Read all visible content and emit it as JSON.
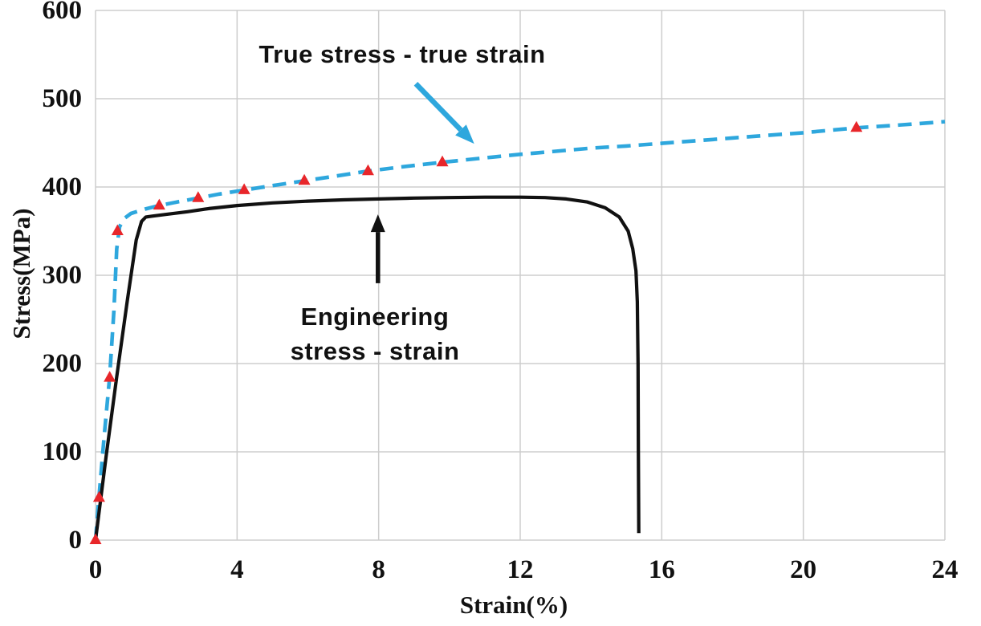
{
  "chart_data": {
    "type": "line",
    "title": "",
    "xlabel": "Strain(%)",
    "ylabel": "Stress(MPa)",
    "xlim": [
      0,
      24
    ],
    "ylim": [
      0,
      600
    ],
    "x_ticks": [
      0,
      4,
      8,
      12,
      16,
      20,
      24
    ],
    "y_ticks": [
      0,
      100,
      200,
      300,
      400,
      500,
      600
    ],
    "grid": true,
    "legend_position": "none",
    "series": [
      {
        "name": "True stress - true strain",
        "style": "dashed",
        "color": "#2ea7dd",
        "points": [
          [
            0,
            0
          ],
          [
            0.1,
            50
          ],
          [
            0.25,
            120
          ],
          [
            0.4,
            185
          ],
          [
            0.52,
            260
          ],
          [
            0.6,
            330
          ],
          [
            0.68,
            355
          ],
          [
            0.8,
            364
          ],
          [
            1.0,
            370
          ],
          [
            1.4,
            375
          ],
          [
            1.8,
            379
          ],
          [
            2.3,
            383
          ],
          [
            2.9,
            387.5
          ],
          [
            3.5,
            392
          ],
          [
            4.2,
            396.5
          ],
          [
            5.0,
            401.5
          ],
          [
            5.9,
            407
          ],
          [
            6.8,
            412.5
          ],
          [
            7.7,
            418
          ],
          [
            8.7,
            423
          ],
          [
            9.8,
            428
          ],
          [
            11.0,
            433
          ],
          [
            12.0,
            437
          ],
          [
            13.0,
            440.5
          ],
          [
            14.0,
            444
          ],
          [
            15.0,
            446.5
          ],
          [
            16.0,
            449.5
          ],
          [
            17.0,
            452.5
          ],
          [
            18.0,
            455.5
          ],
          [
            19.0,
            458.5
          ],
          [
            20.0,
            461.5
          ],
          [
            21.5,
            467
          ],
          [
            22.8,
            470.5
          ],
          [
            24.0,
            474
          ]
        ]
      },
      {
        "name": "Engineering stress - strain",
        "style": "solid",
        "color": "#111111",
        "points": [
          [
            0,
            0
          ],
          [
            0.3,
            95
          ],
          [
            0.6,
            185
          ],
          [
            0.9,
            272
          ],
          [
            1.15,
            340
          ],
          [
            1.3,
            361
          ],
          [
            1.42,
            366
          ],
          [
            1.6,
            367
          ],
          [
            2.0,
            369
          ],
          [
            2.6,
            372
          ],
          [
            3.2,
            375.5
          ],
          [
            4.0,
            379
          ],
          [
            5.0,
            382
          ],
          [
            6.0,
            384
          ],
          [
            7.0,
            385.5
          ],
          [
            8.0,
            386.5
          ],
          [
            9.0,
            387.5
          ],
          [
            10.0,
            388
          ],
          [
            11.0,
            388.5
          ],
          [
            12.0,
            388.5
          ],
          [
            12.7,
            388
          ],
          [
            13.3,
            386.5
          ],
          [
            13.9,
            383
          ],
          [
            14.4,
            376.5
          ],
          [
            14.8,
            366
          ],
          [
            15.05,
            350
          ],
          [
            15.18,
            330
          ],
          [
            15.27,
            305
          ],
          [
            15.31,
            270
          ],
          [
            15.33,
            200
          ],
          [
            15.34,
            100
          ],
          [
            15.35,
            8
          ]
        ]
      }
    ],
    "markers": {
      "shape": "triangle-up",
      "color": "#e8262a",
      "series": "True stress - true strain",
      "points": [
        [
          0,
          0
        ],
        [
          0.1,
          48
        ],
        [
          0.4,
          184
        ],
        [
          0.62,
          350
        ],
        [
          1.8,
          379
        ],
        [
          2.9,
          387.5
        ],
        [
          4.2,
          396.5
        ],
        [
          5.9,
          407
        ],
        [
          7.7,
          418
        ],
        [
          9.8,
          428
        ],
        [
          21.5,
          467
        ]
      ]
    },
    "annotations": {
      "true_label": "True stress - true strain",
      "eng_label": "Engineering\nstress - strain",
      "arrows": [
        {
          "name": "true-curve-arrow",
          "color": "#2ea7dd",
          "x1": 9.05,
          "y1": 517,
          "x2": 10.7,
          "y2": 449,
          "shaft": 6.5,
          "head_len": 24,
          "head_halfwidth": 9.5
        },
        {
          "name": "eng-curve-arrow",
          "color": "#111111",
          "x1": 7.98,
          "y1": 291,
          "x2": 7.98,
          "y2": 369,
          "shaft": 5.5,
          "head_len": 22,
          "head_halfwidth": 9
        }
      ]
    },
    "colors": {
      "grid": "#cdcdcd",
      "text": "#111111",
      "background": "#ffffff",
      "true_curve": "#2ea7dd",
      "eng_curve": "#111111",
      "marker": "#e8262a"
    }
  }
}
